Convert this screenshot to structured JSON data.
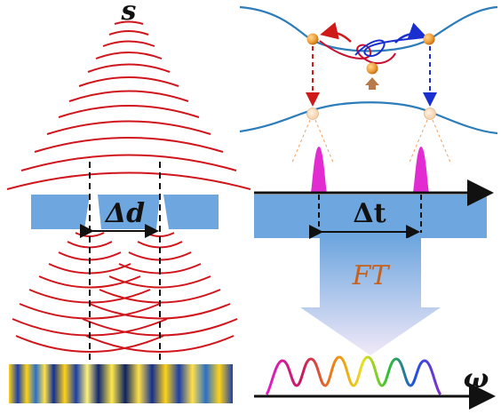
{
  "labels": {
    "source": "s",
    "slit_separation": "Δd",
    "time_delay": "Δt",
    "fourier_transform": "FT",
    "frequency": "ω"
  },
  "colors": {
    "wave_red": "#d0161c",
    "band_blue": "#6ea6df",
    "curve_blue": "#2d7dbb",
    "pulse_magenta": "#e22bd0",
    "atom_orange": "#f0a03c",
    "arrow_red": "#d01a1a",
    "arrow_blue": "#1a2fd0"
  }
}
